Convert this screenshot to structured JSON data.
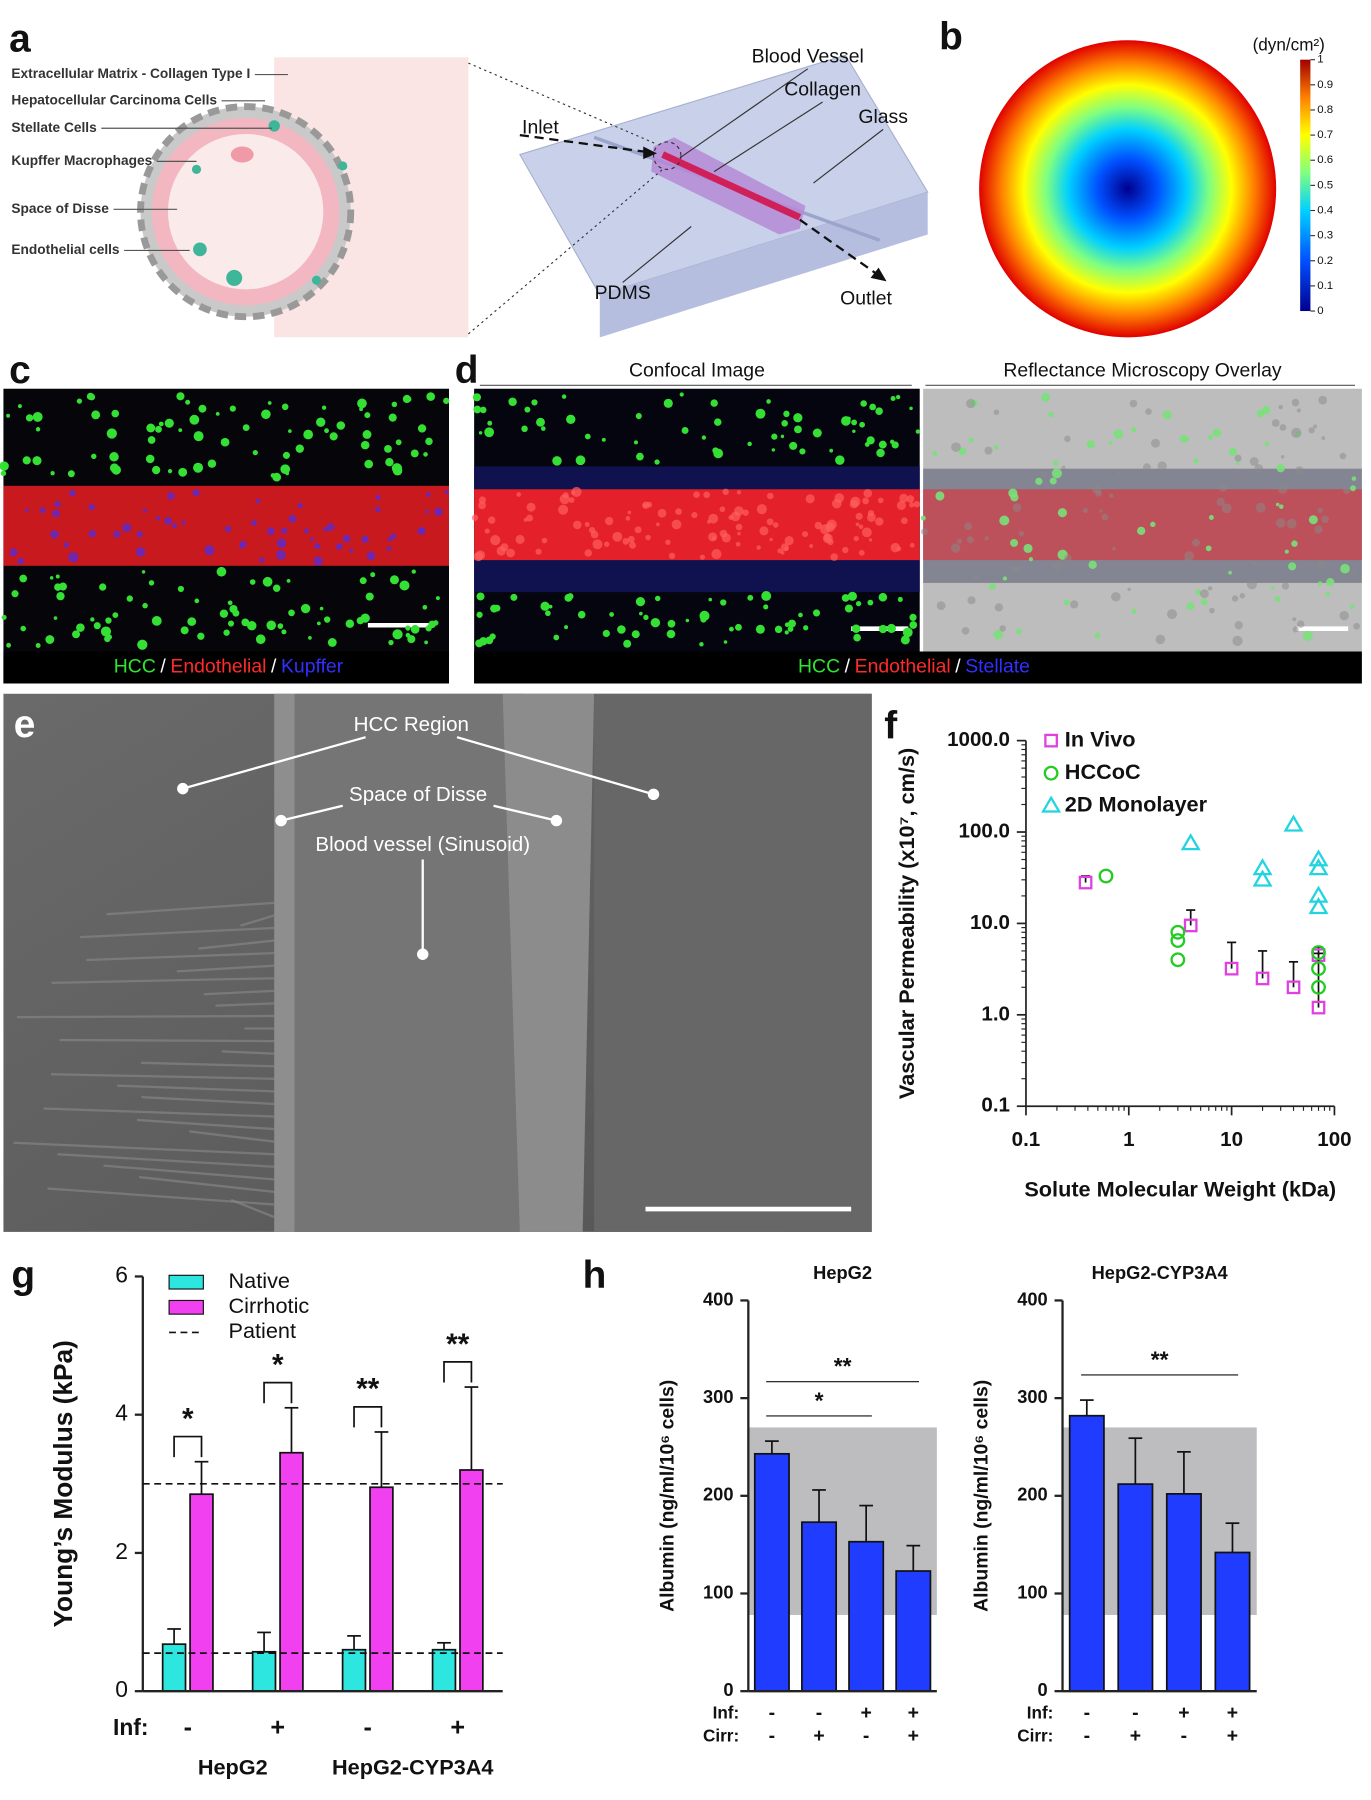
{
  "figure": {
    "panel_labels": [
      "a",
      "b",
      "c",
      "d",
      "e",
      "f",
      "g",
      "h"
    ],
    "a": {
      "labels": [
        "Extracellular Matrix - Collagen Type I",
        "Hepatocellular Carcinoma Cells",
        "Stellate Cells",
        "Kupffer Macrophages",
        "Space of Disse",
        "Endothelial cells"
      ],
      "chip_labels": [
        "Blood Vessel",
        "Collagen",
        "Glass",
        "Inlet",
        "PDMS",
        "Outlet"
      ]
    },
    "b": {
      "unit": "(dyn/cm²)",
      "colorbar_ticks": [
        0,
        0.1,
        0.2,
        0.3,
        0.4,
        0.5,
        0.6,
        0.7,
        0.8,
        0.9,
        1
      ]
    },
    "c": {
      "legend": [
        "HCC",
        "/",
        "Endothelial",
        "/",
        "Kupffer"
      ]
    },
    "d": {
      "headers": [
        "Confocal Image",
        "Reflectance Microscopy Overlay"
      ],
      "legend": [
        "HCC",
        "/",
        "Endothelial",
        "/",
        "Stellate"
      ]
    },
    "e": {
      "labels": [
        "HCC Region",
        "Space of Disse",
        "Blood vessel (Sinusoid)"
      ]
    }
  },
  "chart_data": [
    {
      "type": "scatter",
      "x_label": "Solute Molecular Weight (kDa)",
      "y_label": "Vascular Permeability (x10⁷, cm/s)",
      "xscale": "log",
      "yscale": "log",
      "xlim": [
        0.1,
        100
      ],
      "ylim": [
        0.1,
        1000
      ],
      "xticks": [
        0.1,
        1,
        10,
        100
      ],
      "yticks": [
        0.1,
        {
          "value": 1,
          "label": "1.0"
        },
        {
          "value": 10,
          "label": "10.0"
        },
        {
          "value": 100,
          "label": "100.0"
        },
        {
          "value": 1000,
          "label": "1000.0"
        }
      ],
      "legend_position": "top-left",
      "series": [
        {
          "name": "In Vivo",
          "color": "#e040e0",
          "marker": "square",
          "x": [
            0.38,
            4,
            10,
            20,
            40,
            70,
            70
          ],
          "values": [
            28,
            9.5,
            3.2,
            2.5,
            2.0,
            4.5,
            1.2
          ],
          "errors": [
            5,
            4.5,
            3,
            2.5,
            1.8,
            1,
            3.5
          ]
        },
        {
          "name": "HCCoC",
          "color": "#22cc22",
          "marker": "circle",
          "x": [
            0.6,
            3,
            3,
            3,
            70,
            70,
            70
          ],
          "values": [
            33,
            8,
            6.5,
            4,
            4.8,
            3.2,
            2
          ]
        },
        {
          "name": "2D Monolayer",
          "color": "#22d3e0",
          "marker": "triangle",
          "x": [
            4,
            20,
            20,
            40,
            70,
            70,
            70,
            70
          ],
          "values": [
            75,
            40,
            30,
            120,
            50,
            40,
            20,
            15
          ]
        }
      ]
    },
    {
      "type": "bar",
      "y_label": "Young’s Modulus (kPa)",
      "ylim": [
        0,
        6
      ],
      "yticks": [
        0,
        2,
        4,
        6
      ],
      "row_label": "Inf:",
      "categories": [
        "-",
        "+",
        "-",
        "+"
      ],
      "group_labels": [
        "HepG2",
        "HepG2-CYP3A4"
      ],
      "legend_position": "top-left",
      "series": [
        {
          "name": "Native",
          "color": "#2ee6e0",
          "values": [
            0.68,
            0.57,
            0.6,
            0.6
          ],
          "errors": [
            0.22,
            0.28,
            0.2,
            0.1
          ]
        },
        {
          "name": "Cirrhotic",
          "color": "#f040f0",
          "values": [
            2.85,
            3.45,
            2.95,
            3.2
          ],
          "errors": [
            0.47,
            0.65,
            0.8,
            1.2
          ]
        }
      ],
      "reference_lines": {
        "name": "Patient",
        "values": [
          3.0,
          0.55
        ]
      },
      "annotations": [
        "*",
        "*",
        "**",
        "**"
      ]
    },
    {
      "type": "bar",
      "title": "HepG2",
      "y_label": "Albumin (ng/ml/10⁶ cells)",
      "ylim": [
        0,
        400
      ],
      "yticks": [
        0,
        100,
        200,
        300,
        400
      ],
      "rows": [
        {
          "label": "Inf:",
          "values": [
            "-",
            "-",
            "+",
            "+"
          ]
        },
        {
          "label": "Cirr:",
          "values": [
            "-",
            "+",
            "-",
            "+"
          ]
        }
      ],
      "series": [
        {
          "color": "#1f3cff",
          "values": [
            243,
            173,
            153,
            123
          ],
          "errors": [
            13,
            33,
            37,
            26
          ]
        }
      ],
      "shaded_range": [
        78,
        270
      ],
      "significance": [
        {
          "label": "*",
          "from": 0,
          "to": 2
        },
        {
          "label": "**",
          "from": 0,
          "to": 3
        }
      ]
    },
    {
      "type": "bar",
      "title": "HepG2-CYP3A4",
      "y_label": "Albumin (ng/ml/10⁶ cells)",
      "ylim": [
        0,
        400
      ],
      "yticks": [
        0,
        100,
        200,
        300,
        400
      ],
      "rows": [
        {
          "label": "Inf:",
          "values": [
            "-",
            "-",
            "+",
            "+"
          ]
        },
        {
          "label": "Cirr:",
          "values": [
            "-",
            "+",
            "-",
            "+"
          ]
        }
      ],
      "series": [
        {
          "color": "#1f3cff",
          "values": [
            282,
            212,
            202,
            142
          ],
          "errors": [
            16,
            47,
            43,
            30
          ]
        }
      ],
      "shaded_range": [
        78,
        270
      ],
      "significance": [
        {
          "label": "**",
          "from": 0,
          "to": 3
        }
      ]
    }
  ]
}
